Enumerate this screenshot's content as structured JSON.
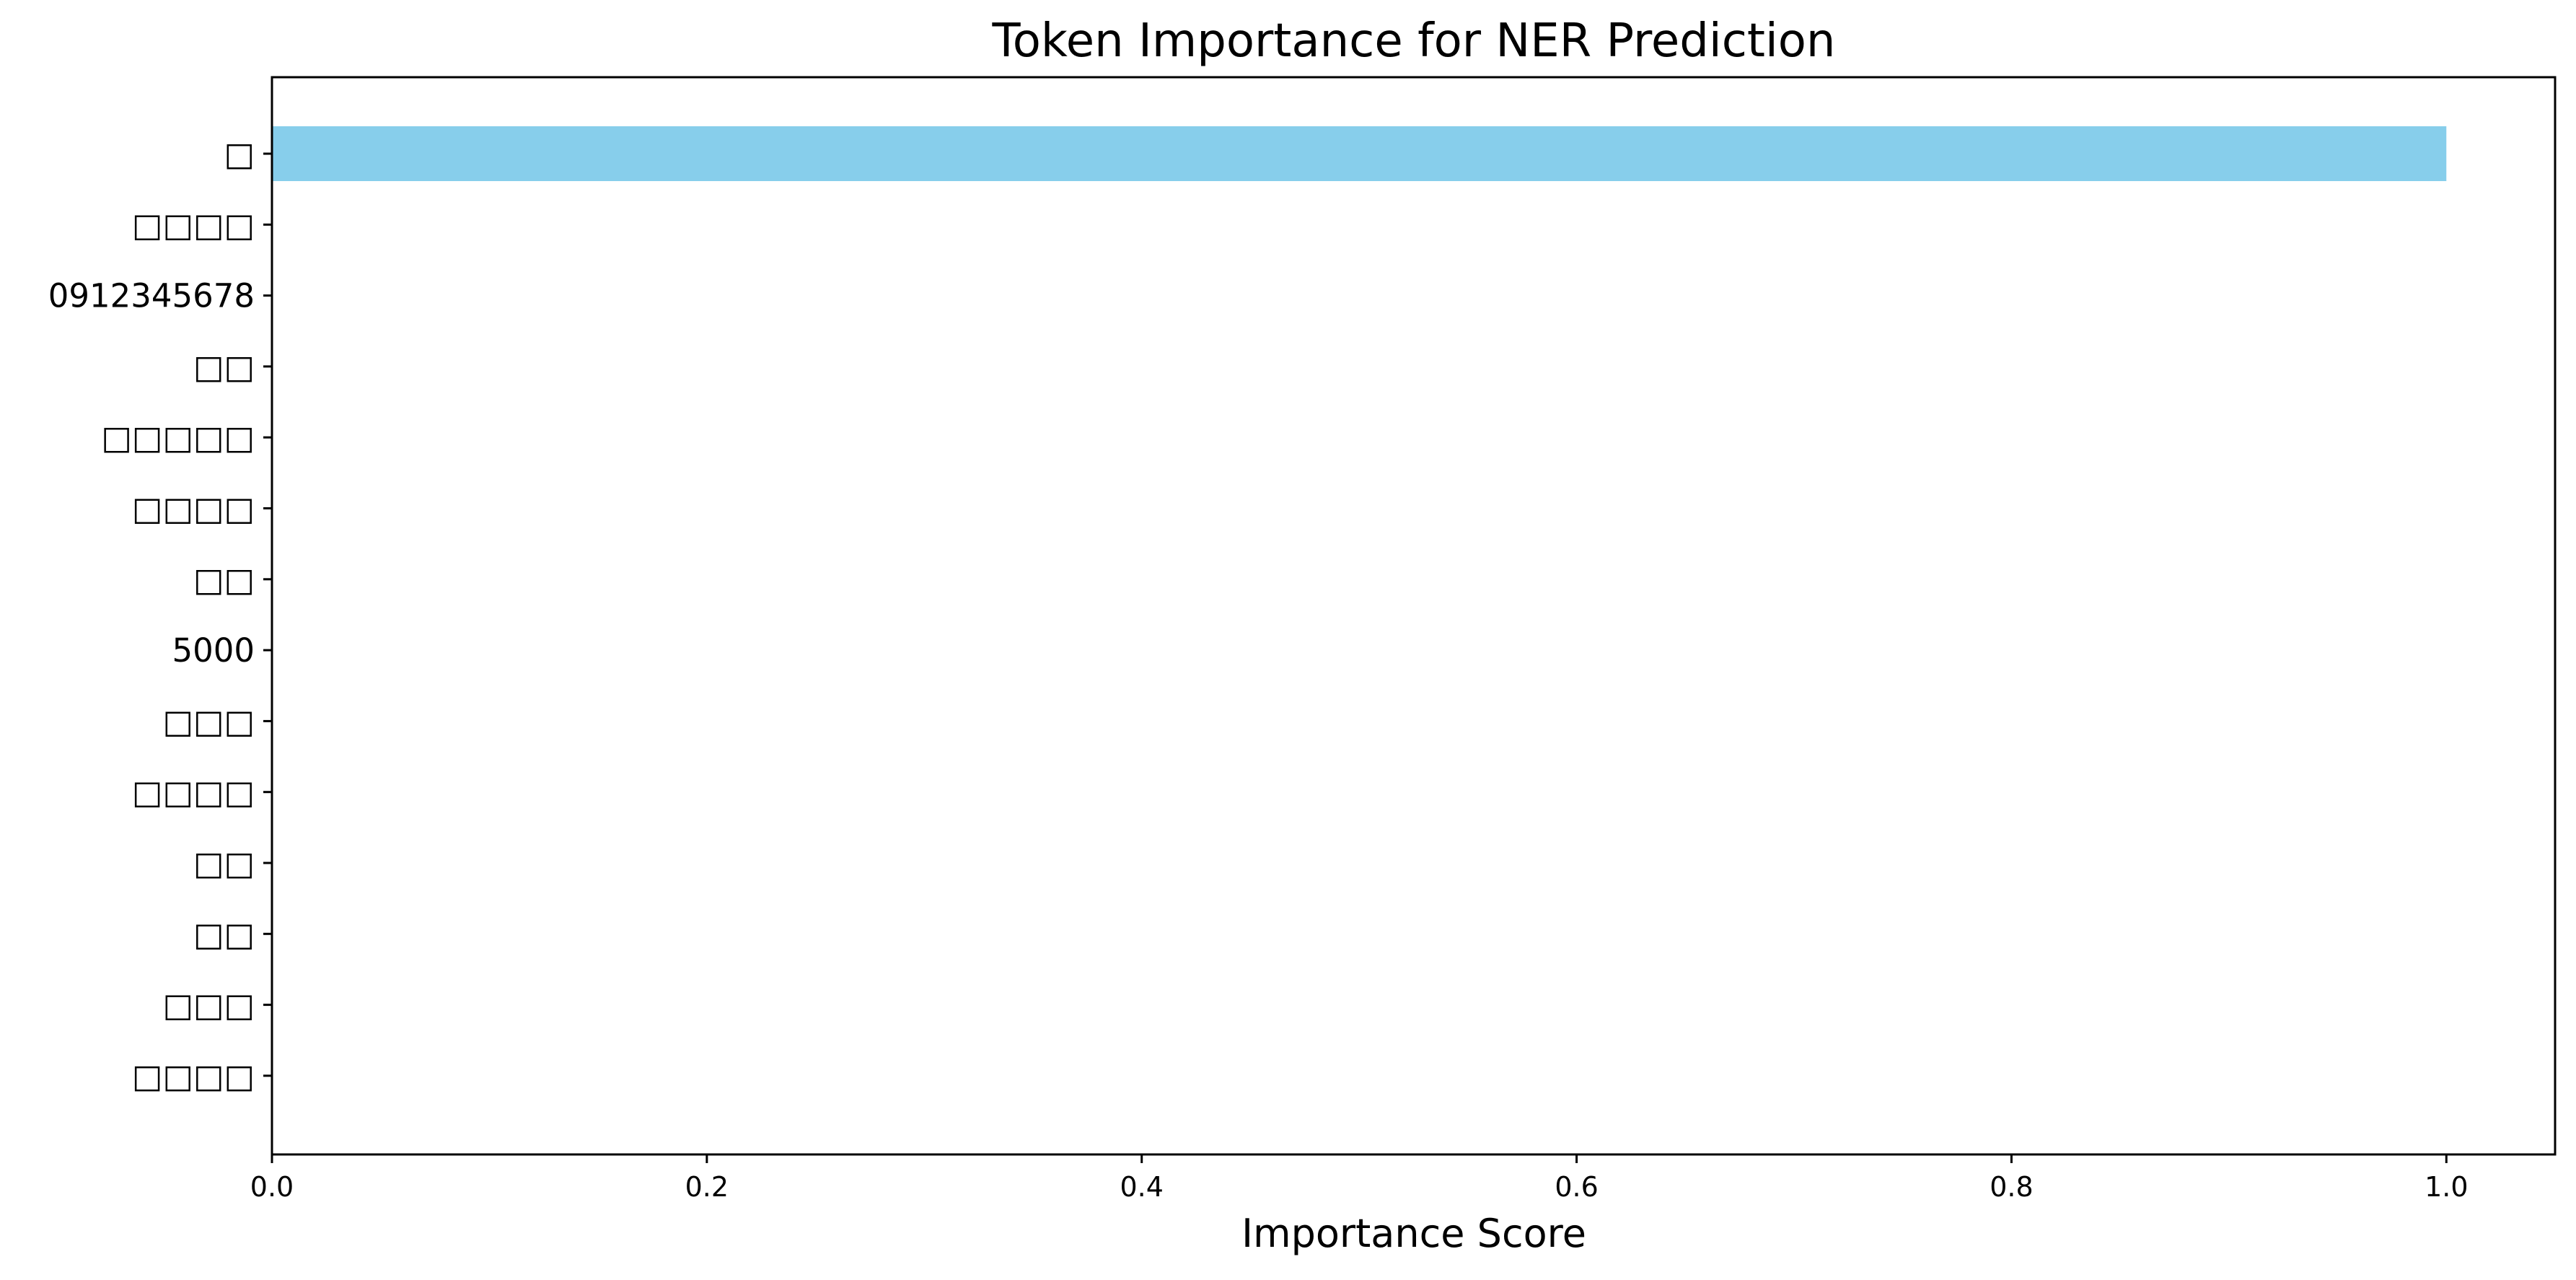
{
  "chart_data": {
    "type": "bar",
    "orientation": "horizontal",
    "title": "Token Importance for NER Prediction",
    "xlabel": "Importance Score",
    "ylabel": "",
    "categories": [
      "□",
      "□□□□",
      "0912345678",
      "□□",
      "□□□□□",
      "□□□□",
      "□□",
      "5000",
      "□□□",
      "□□□□",
      "□□",
      "□□",
      "□□□",
      "□□□□"
    ],
    "values": [
      1.0,
      0,
      0,
      0,
      0,
      0,
      0,
      0,
      0,
      0,
      0,
      0,
      0,
      0
    ],
    "xlim": [
      0,
      1.05
    ],
    "xticks": [
      0.0,
      0.2,
      0.4,
      0.6,
      0.8,
      1.0
    ],
    "xtick_labels": [
      "0.0",
      "0.2",
      "0.4",
      "0.6",
      "0.8",
      "1.0"
    ],
    "bar_color": "#87ceeb",
    "grid": false,
    "legend": "none"
  }
}
